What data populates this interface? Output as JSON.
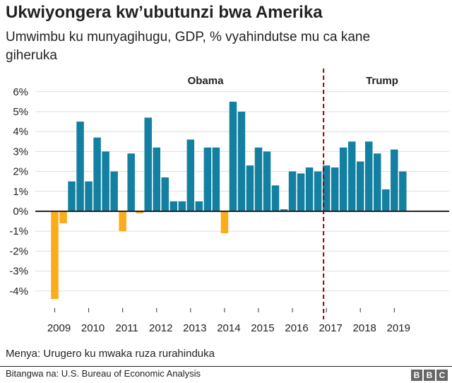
{
  "title": "Ukwiyongera kw’ubutunzi bwa Amerika",
  "subtitle": "Umwimbu ku munyagihugu, GDP, % vyahindutse mu ca kane giheruka",
  "note": "Menya: Urugero ku mwaka ruza rurahinduka",
  "source": "Bitangwa na: U.S. Bureau of Economic Analysis",
  "logo_letters": [
    "B",
    "B",
    "C"
  ],
  "colors": {
    "positive": "#1380a1",
    "negative": "#fcab1b",
    "divider": "#990000",
    "zero_line": "#222222",
    "grid": "#dddddd"
  },
  "chart_data": {
    "type": "bar",
    "y_unit": "%",
    "ylim": [
      -5,
      6.5
    ],
    "yticks": [
      "6%",
      "5%",
      "4%",
      "3%",
      "2%",
      "1%",
      "0%",
      "-1%",
      "-2%",
      "-3%",
      "-4%"
    ],
    "ytick_values": [
      6,
      5,
      4,
      3,
      2,
      1,
      0,
      -1,
      -2,
      -3,
      -4
    ],
    "xticks": [
      "2009",
      "2010",
      "2011",
      "2012",
      "2013",
      "2014",
      "2015",
      "2016",
      "2017",
      "2018",
      "2019"
    ],
    "periods": [
      {
        "label": "Obama",
        "start": "2009-Q1",
        "end": "2016-Q4"
      },
      {
        "label": "Trump",
        "start": "2017-Q1",
        "end": "2019-Q2"
      }
    ],
    "divider_at": "2017-Q1",
    "grid": true,
    "categories": [
      "2009-Q1",
      "2009-Q2",
      "2009-Q3",
      "2009-Q4",
      "2010-Q1",
      "2010-Q2",
      "2010-Q3",
      "2010-Q4",
      "2011-Q1",
      "2011-Q2",
      "2011-Q3",
      "2011-Q4",
      "2012-Q1",
      "2012-Q2",
      "2012-Q3",
      "2012-Q4",
      "2013-Q1",
      "2013-Q2",
      "2013-Q3",
      "2013-Q4",
      "2014-Q1",
      "2014-Q2",
      "2014-Q3",
      "2014-Q4",
      "2015-Q1",
      "2015-Q2",
      "2015-Q3",
      "2015-Q4",
      "2016-Q1",
      "2016-Q2",
      "2016-Q3",
      "2016-Q4",
      "2017-Q1",
      "2017-Q2",
      "2017-Q3",
      "2017-Q4",
      "2018-Q1",
      "2018-Q2",
      "2018-Q3",
      "2018-Q4",
      "2019-Q1",
      "2019-Q2"
    ],
    "values": [
      -4.4,
      -0.6,
      1.5,
      4.5,
      1.5,
      3.7,
      3.0,
      2.0,
      -1.0,
      2.9,
      -0.1,
      4.7,
      3.2,
      1.7,
      0.5,
      0.5,
      3.6,
      0.5,
      3.2,
      3.2,
      -1.1,
      5.5,
      5.0,
      2.3,
      3.2,
      3.0,
      1.3,
      0.1,
      2.0,
      1.9,
      2.2,
      2.0,
      2.3,
      2.2,
      3.2,
      3.5,
      2.5,
      3.5,
      2.9,
      1.1,
      3.1,
      2.0
    ]
  }
}
